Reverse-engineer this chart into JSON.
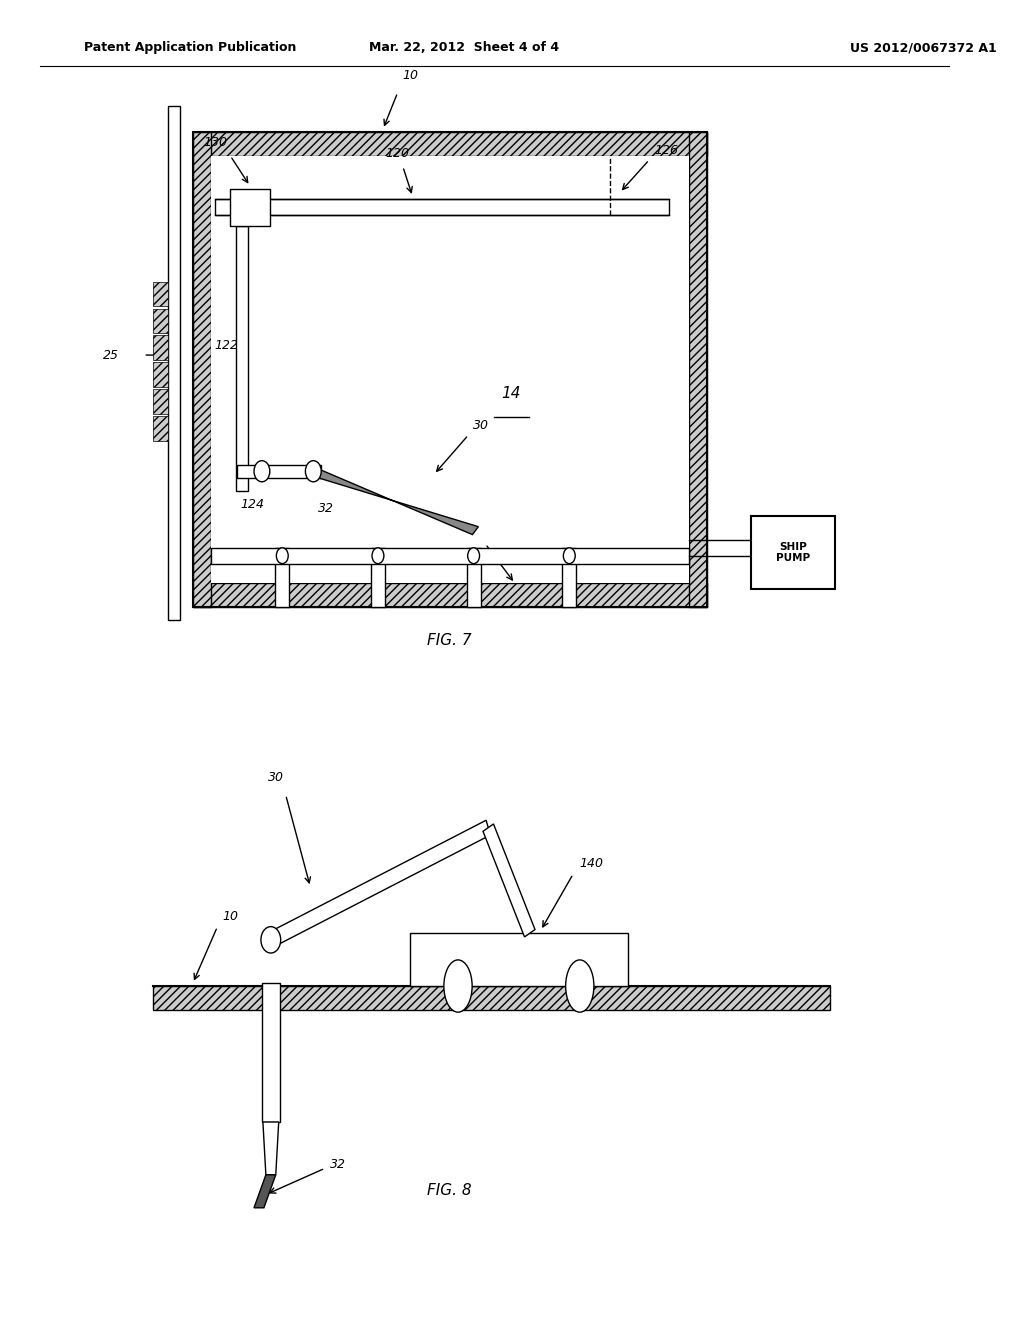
{
  "header_left": "Patent Application Publication",
  "header_mid": "Mar. 22, 2012  Sheet 4 of 4",
  "header_right": "US 2012/0067372 A1",
  "fig7_label": "FIG. 7",
  "fig8_label": "FIG. 8",
  "bg_color": "#ffffff",
  "line_color": "#000000"
}
